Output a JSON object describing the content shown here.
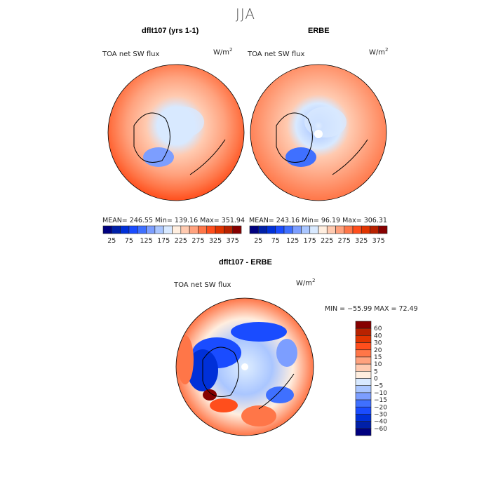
{
  "title": "JJA",
  "panels": [
    {
      "title": "dflt107 (yrs 1-1)",
      "variable": "TOA net SW flux",
      "units": "W/m",
      "units_sup": "2",
      "stats": "MEAN= 246.55   Min= 139.16   Max= 351.94"
    },
    {
      "title": "ERBE",
      "variable": "TOA net SW flux",
      "units": "W/m",
      "units_sup": "2",
      "stats": "MEAN= 243.16   Min=   96.19   Max= 306.31"
    },
    {
      "title": "dflt107 - ERBE",
      "variable": "TOA net SW flux",
      "units": "W/m",
      "units_sup": "2",
      "stats": "MIN = −55.99  MAX =   72.49"
    }
  ],
  "colorbar_abs": {
    "labels": [
      "25",
      "75",
      "125",
      "175",
      "225",
      "275",
      "325",
      "375"
    ]
  },
  "colorbar_diff": {
    "labels": [
      "60",
      "40",
      "30",
      "20",
      "15",
      "10",
      "5",
      "0",
      "−5",
      "−10",
      "−15",
      "−20",
      "−30",
      "−40",
      "−60"
    ]
  },
  "palette": [
    "#00007f",
    "#0020a8",
    "#0030d8",
    "#1a4cff",
    "#3f70ff",
    "#7c9eff",
    "#aac6ff",
    "#d8e9ff",
    "#ffeedf",
    "#ffcab0",
    "#ffa27e",
    "#ff7648",
    "#ff4e1c",
    "#e03400",
    "#b82200",
    "#860000"
  ]
}
